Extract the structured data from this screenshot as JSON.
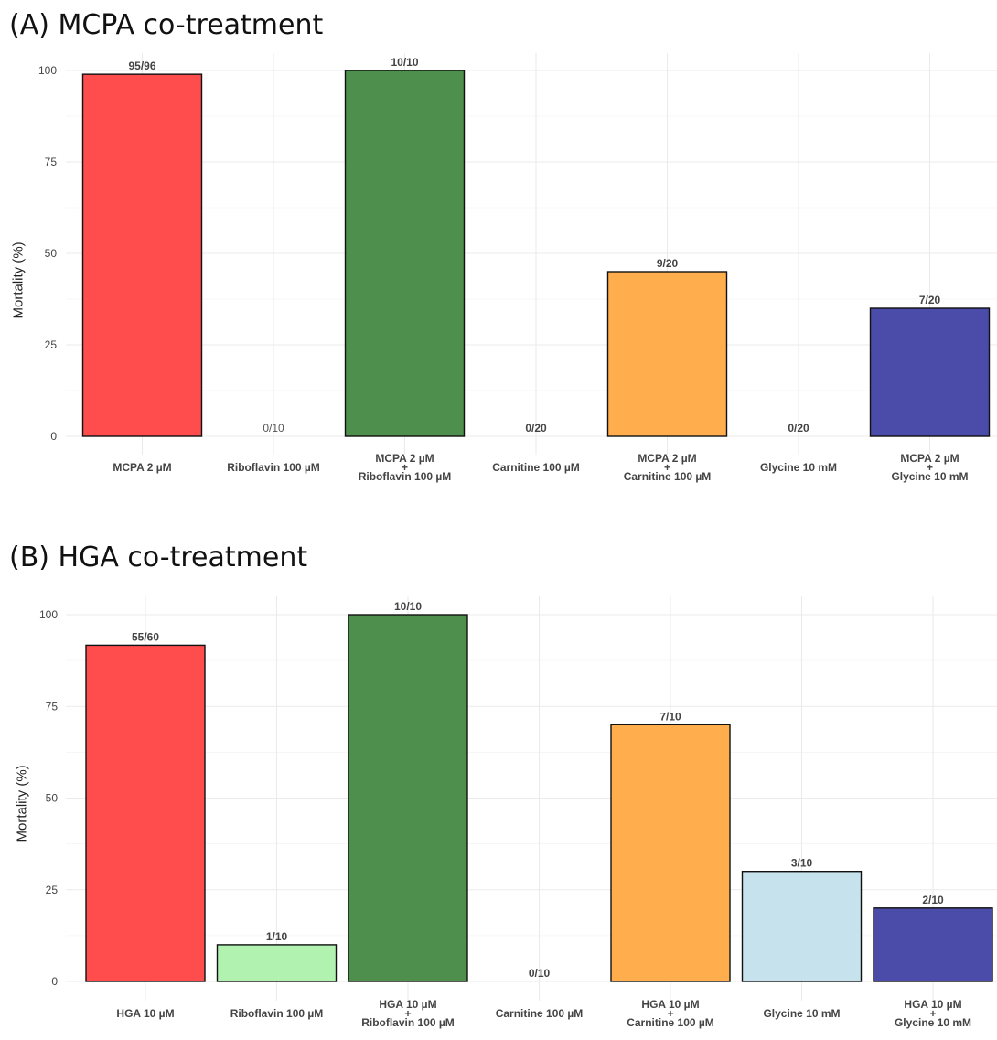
{
  "chart_data": [
    {
      "type": "bar",
      "title": "(A) MCPA co-treatment",
      "ylabel": "Mortality (%)",
      "ylim": [
        0,
        100
      ],
      "yticks": [
        "0",
        "25",
        "50",
        "75",
        "100"
      ],
      "grid": true,
      "categories": [
        [
          "MCPA 2 µM"
        ],
        [
          "Riboflavin 100 µM"
        ],
        [
          "MCPA 2 µM",
          "+",
          "Riboflavin 100 µM"
        ],
        [
          "Carnitine 100 µM"
        ],
        [
          "MCPA 2 µM",
          "+",
          "Carnitine 100 µM"
        ],
        [
          "Glycine 10 mM"
        ],
        [
          "MCPA 2 µM",
          "+",
          "Glycine 10 mM"
        ]
      ],
      "values": [
        98.96,
        0,
        100,
        0,
        45,
        0,
        35
      ],
      "labels": [
        "95/96",
        "0/10",
        "10/10",
        "0/20",
        "9/20",
        "0/20",
        "7/20"
      ],
      "label_bold": [
        true,
        false,
        true,
        true,
        true,
        true,
        true
      ],
      "colors": [
        "#ff4c4c",
        "#ffffff",
        "#4e8f4e",
        "#ffffff",
        "#ffad4d",
        "#ffffff",
        "#4b4baa"
      ]
    },
    {
      "type": "bar",
      "title": "(B) HGA co-treatment",
      "ylabel": "Mortality (%)",
      "ylim": [
        0,
        100
      ],
      "yticks": [
        "0",
        "25",
        "50",
        "75",
        "100"
      ],
      "grid": true,
      "categories": [
        [
          "HGA 10 µM"
        ],
        [
          "Riboflavin 100 µM"
        ],
        [
          "HGA 10 µM",
          "+",
          "Riboflavin 100 µM"
        ],
        [
          "Carnitine 100 µM"
        ],
        [
          "HGA 10 µM",
          "+",
          "Carnitine 100 µM"
        ],
        [
          "Glycine 10 mM"
        ],
        [
          "HGA 10 µM",
          "+",
          "Glycine 10 mM"
        ]
      ],
      "values": [
        91.67,
        10,
        100,
        0,
        70,
        30,
        20
      ],
      "labels": [
        "55/60",
        "1/10",
        "10/10",
        "0/10",
        "7/10",
        "3/10",
        "2/10"
      ],
      "label_bold": [
        true,
        true,
        true,
        true,
        true,
        true,
        true
      ],
      "colors": [
        "#ff4c4c",
        "#b1f2b1",
        "#4e8f4e",
        "#ffffff",
        "#ffad4d",
        "#c6e2ec",
        "#4b4baa"
      ]
    }
  ]
}
